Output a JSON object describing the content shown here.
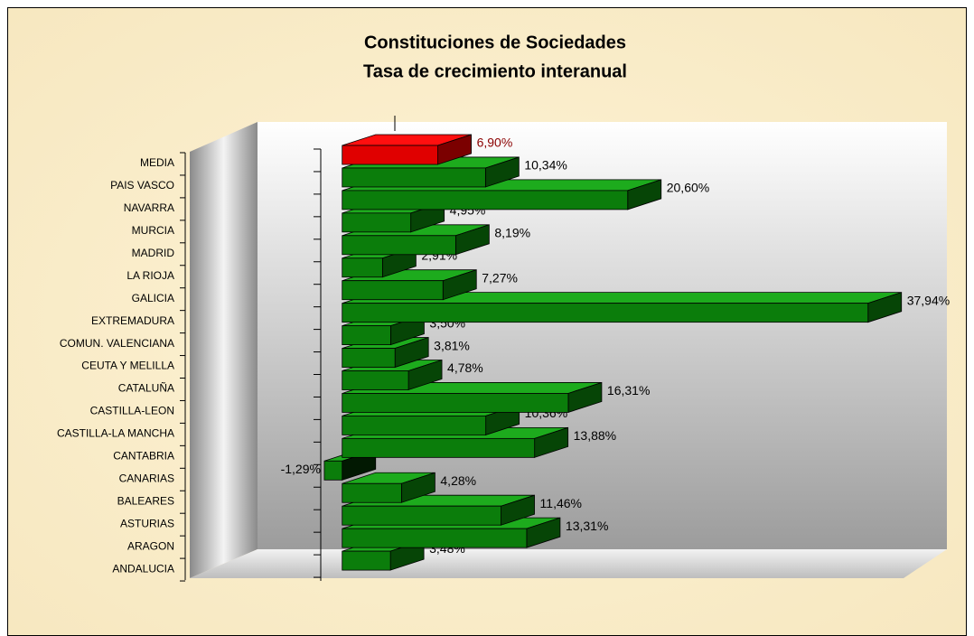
{
  "chart_data": {
    "type": "bar3d_horizontal",
    "title": "Constituciones de Sociedades",
    "subtitle": "Tasa de crecimiento interanual",
    "categories": [
      "MEDIA",
      "PAIS VASCO",
      "NAVARRA",
      "MURCIA",
      "MADRID",
      "LA RIOJA",
      "GALICIA",
      "EXTREMADURA",
      "COMUN. VALENCIANA",
      "CEUTA Y MELILLA",
      "CATALUÑA",
      "CASTILLA-LEON",
      "CASTILLA-LA MANCHA",
      "CANTABRIA",
      "CANARIAS",
      "BALEARES",
      "ASTURIAS",
      "ARAGON",
      "ANDALUCIA"
    ],
    "values": [
      6.9,
      10.34,
      20.6,
      4.95,
      8.19,
      2.91,
      7.27,
      37.94,
      3.5,
      3.81,
      4.78,
      16.31,
      10.36,
      13.88,
      -1.29,
      4.28,
      11.46,
      13.31,
      3.48
    ],
    "value_labels": [
      "6,90%",
      "10,34%",
      "20,60%",
      "4,95%",
      "8,19%",
      "2,91%",
      "7,27%",
      "37,94%",
      "3,50%",
      "3,81%",
      "4,78%",
      "16,31%",
      "10,36%",
      "13,88%",
      "-1,29%",
      "4,28%",
      "11,46%",
      "13,31%",
      "3,48%"
    ],
    "colors": [
      "#e00000",
      "#0b7d0b",
      "#0b7d0b",
      "#0b7d0b",
      "#0b7d0b",
      "#0b7d0b",
      "#0b7d0b",
      "#0b7d0b",
      "#0b7d0b",
      "#0b7d0b",
      "#0b7d0b",
      "#0b7d0b",
      "#0b7d0b",
      "#0b7d0b",
      "#0b7d0b",
      "#0b7d0b",
      "#0b7d0b",
      "#0b7d0b",
      "#0b7d0b"
    ],
    "label_colors": [
      "#8b0000",
      "#000000",
      "#000000",
      "#000000",
      "#000000",
      "#000000",
      "#000000",
      "#000000",
      "#000000",
      "#000000",
      "#000000",
      "#000000",
      "#000000",
      "#000000",
      "#000000",
      "#000000",
      "#000000",
      "#000000",
      "#000000"
    ],
    "xlim": [
      -11,
      40.5
    ]
  }
}
